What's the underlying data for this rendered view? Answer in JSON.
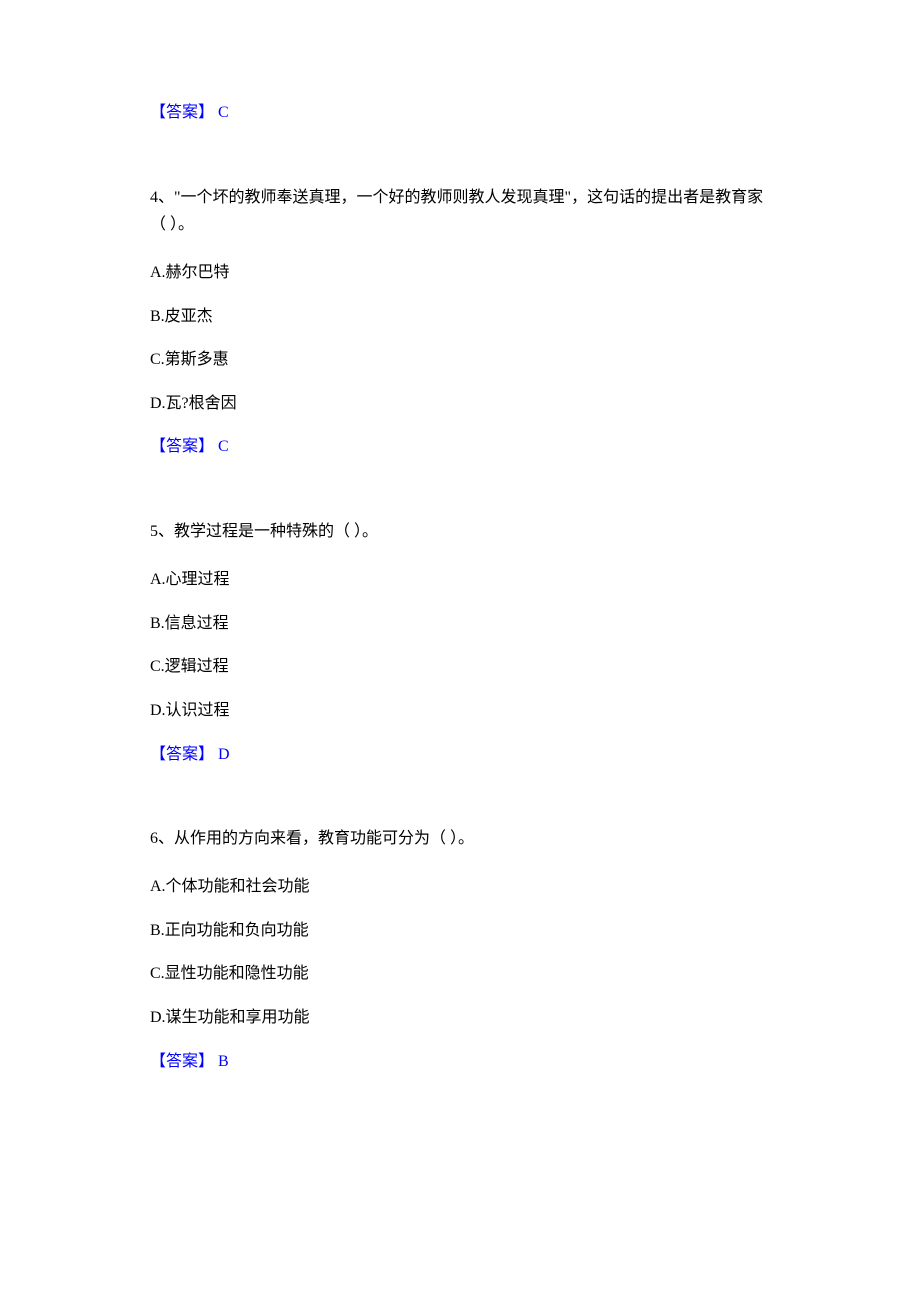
{
  "answer_prefix": "【答案】 ",
  "q3_answer": "C",
  "q4": {
    "question": "4、\"一个坏的教师奉送真理，一个好的教师则教人发现真理\"，这句话的提出者是教育家（ ）。",
    "optA": "A.赫尔巴特",
    "optB": "B.皮亚杰",
    "optC": "C.第斯多惠",
    "optD": "D.瓦?根舍因",
    "answer": "C"
  },
  "q5": {
    "question": "5、教学过程是一种特殊的（ ）。",
    "optA": "A.心理过程",
    "optB": "B.信息过程",
    "optC": "C.逻辑过程",
    "optD": "D.认识过程",
    "answer": "D"
  },
  "q6": {
    "question": "6、从作用的方向来看，教育功能可分为（ ）。",
    "optA": "A.个体功能和社会功能",
    "optB": "B.正向功能和负向功能",
    "optC": "C.显性功能和隐性功能",
    "optD": "D.谋生功能和享用功能",
    "answer": "B"
  },
  "colors": {
    "text": "#000000",
    "answer": "#0000ff",
    "background": "#ffffff"
  },
  "fontsize": 16
}
